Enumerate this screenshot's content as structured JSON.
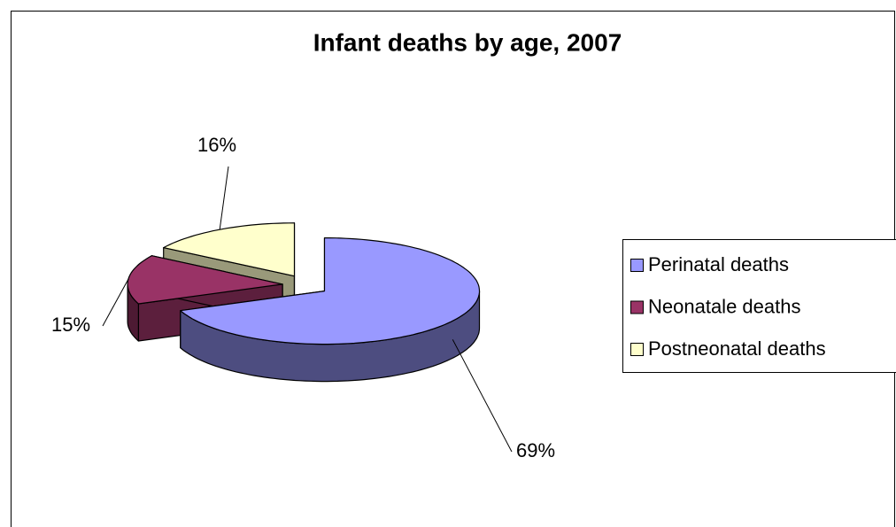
{
  "chart_data": {
    "type": "pie",
    "title": "Infant deaths by age,  2007",
    "categories": [
      "Perinatal deaths",
      "Neonatale deaths",
      "Postneonatal deaths"
    ],
    "values": [
      69,
      15,
      16
    ],
    "value_labels": [
      "69%",
      "15%",
      "16%"
    ],
    "colors": [
      "#9999ff",
      "#993366",
      "#ffffcc"
    ],
    "legend": "right"
  }
}
